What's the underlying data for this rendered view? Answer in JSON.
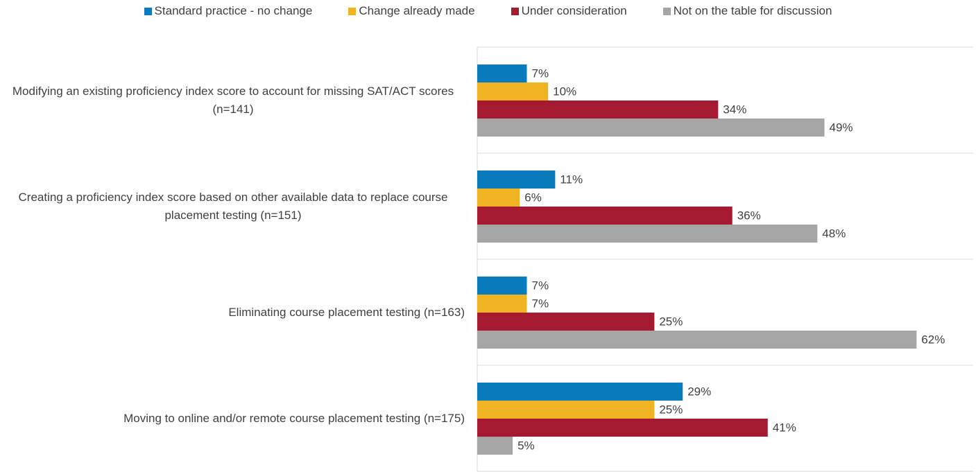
{
  "chart_data": {
    "type": "bar",
    "orientation": "horizontal",
    "categories": [
      "Modifying an existing proficiency index score to account for missing SAT/ACT scores (n=141)",
      "Creating a proficiency index score based on other available data to replace course placement testing (n=151)",
      "Eliminating course placement testing (n=163)",
      "Moving to online and/or remote course placement testing (n=175)"
    ],
    "series": [
      {
        "name": "Standard practice - no change",
        "color": "#0a7bbd",
        "values": [
          7,
          11,
          7,
          29
        ],
        "value_labels": [
          "7%",
          "11%",
          "7%",
          "29%"
        ]
      },
      {
        "name": "Change already made",
        "color": "#f0b323",
        "values": [
          10,
          6,
          7,
          25
        ],
        "value_labels": [
          "10%",
          "6%",
          "7%",
          "25%"
        ]
      },
      {
        "name": "Under consideration",
        "color": "#a51931",
        "values": [
          34,
          36,
          25,
          41
        ],
        "value_labels": [
          "34%",
          "36%",
          "25%",
          "41%"
        ]
      },
      {
        "name": "Not on the table for discussion",
        "color": "#a5a5a5",
        "values": [
          49,
          48,
          62,
          5
        ],
        "value_labels": [
          "49%",
          "48%",
          "62%",
          "5%"
        ]
      }
    ],
    "xlim": [
      0,
      70
    ],
    "legend": "top"
  }
}
